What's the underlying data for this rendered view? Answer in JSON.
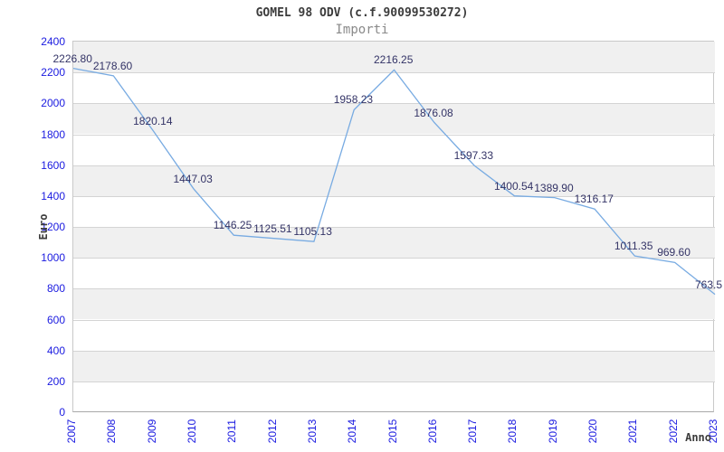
{
  "header": {
    "title": "GOMEL 98 ODV (c.f.90099530272)",
    "subtitle": "Importi"
  },
  "chart_data": {
    "type": "line",
    "title": "GOMEL 98 ODV (c.f.90099530272)",
    "subtitle": "Importi",
    "xlabel": "Anno",
    "ylabel": "Euro",
    "categories": [
      "2007",
      "2008",
      "2009",
      "2010",
      "2011",
      "2012",
      "2013",
      "2014",
      "2015",
      "2016",
      "2017",
      "2018",
      "2019",
      "2020",
      "2021",
      "2022",
      "2023"
    ],
    "values": [
      2226.8,
      2178.6,
      1820.14,
      1447.03,
      1146.25,
      1125.51,
      1105.13,
      1958.23,
      2216.25,
      1876.08,
      1597.33,
      1400.54,
      1389.9,
      1316.17,
      1011.35,
      969.6,
      763.5
    ],
    "point_labels": [
      "2226.80",
      "2178.60",
      "1820.14",
      "1447.03",
      "1146.25",
      "1125.51",
      "1105.13",
      "1958.23",
      "2216.25",
      "1876.08",
      "1597.33",
      "1400.54",
      "1389.90",
      "1316.17",
      "1011.35",
      "969.60",
      "763.5"
    ],
    "ylim": [
      0,
      2400
    ],
    "ytick_step": 200,
    "grid": true,
    "legend_position": "none",
    "colors": {
      "line": "#78abe2",
      "tick_label": "#1a1ae0",
      "point_label": "#333366",
      "band": "#f0f0f0",
      "gridline": "#d4d4d4",
      "title": "#3c3c3c",
      "subtitle": "#8a8a8a",
      "axis_title": "#3c3c3c",
      "plot_border": "#c9c9c9"
    }
  }
}
